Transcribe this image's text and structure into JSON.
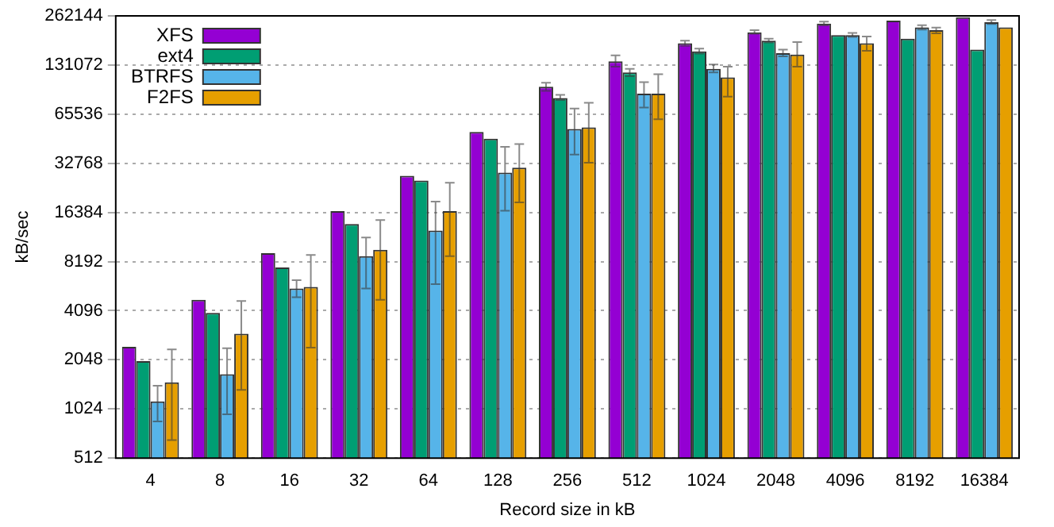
{
  "chart_data": {
    "type": "bar",
    "xlabel": "Record size in kB",
    "ylabel": "kB/sec",
    "log": "y",
    "ylim": [
      512,
      262144
    ],
    "yticks": [
      512,
      1024,
      2048,
      4096,
      8192,
      16384,
      32768,
      65536,
      131072,
      262144
    ],
    "grid": "y",
    "legend": "top left",
    "categories": [
      "4",
      "8",
      "16",
      "32",
      "64",
      "128",
      "256",
      "512",
      "1024",
      "2048",
      "4096",
      "8192",
      "16384"
    ],
    "series": [
      {
        "name": "XFS",
        "color": "#9400d3",
        "values": [
          2460,
          4770,
          9220,
          16700,
          27500,
          51000,
          96500,
          138000,
          178000,
          208000,
          235000,
          245000,
          257000
        ],
        "errors": [
          null,
          null,
          null,
          null,
          null,
          null,
          [
            91000,
            102000
          ],
          [
            128000,
            150000
          ],
          [
            172000,
            185000
          ],
          [
            204000,
            214000
          ],
          [
            229000,
            242000
          ],
          null,
          null
        ]
      },
      {
        "name": "ext4",
        "color": "#009e73",
        "values": [
          2010,
          3970,
          7530,
          13900,
          25700,
          46400,
          82300,
          118000,
          159000,
          185000,
          200000,
          190000,
          163000
        ],
        "errors": [
          null,
          null,
          null,
          null,
          null,
          null,
          [
            80000,
            86000
          ],
          [
            112000,
            124000
          ],
          [
            154000,
            165000
          ],
          [
            180000,
            190000
          ],
          null,
          null,
          null
        ]
      },
      {
        "name": "BTRFS",
        "color": "#56b4e9",
        "values": [
          1140,
          1670,
          5600,
          8830,
          12700,
          28700,
          53200,
          87600,
          124000,
          155000,
          200000,
          223000,
          240000
        ],
        "errors": [
          [
            860,
            1420
          ],
          [
            950,
            2410
          ],
          [
            4950,
            6300
          ],
          [
            5600,
            11500
          ],
          [
            5960,
            19100
          ],
          [
            16800,
            41300
          ],
          [
            37100,
            71000
          ],
          [
            72000,
            103000
          ],
          [
            118000,
            132000
          ],
          [
            148000,
            163000
          ],
          [
            195000,
            206000
          ],
          [
            216000,
            230000
          ],
          [
            234000,
            247000
          ]
        ]
      },
      {
        "name": "F2FS",
        "color": "#e69f00",
        "values": [
          1490,
          2960,
          5730,
          9660,
          16700,
          30800,
          54300,
          87600,
          110000,
          152000,
          178000,
          214000,
          223000
        ],
        "errors": [
          [
            660,
            2370
          ],
          [
            1340,
            4700
          ],
          [
            2430,
            9000
          ],
          [
            4780,
            14700
          ],
          [
            8830,
            24900
          ],
          [
            18900,
            43000
          ],
          [
            33000,
            77000
          ],
          [
            61000,
            115000
          ],
          [
            84000,
            128000
          ],
          [
            128000,
            181000
          ],
          [
            160000,
            196000
          ],
          [
            205000,
            222000
          ],
          null
        ]
      }
    ]
  }
}
